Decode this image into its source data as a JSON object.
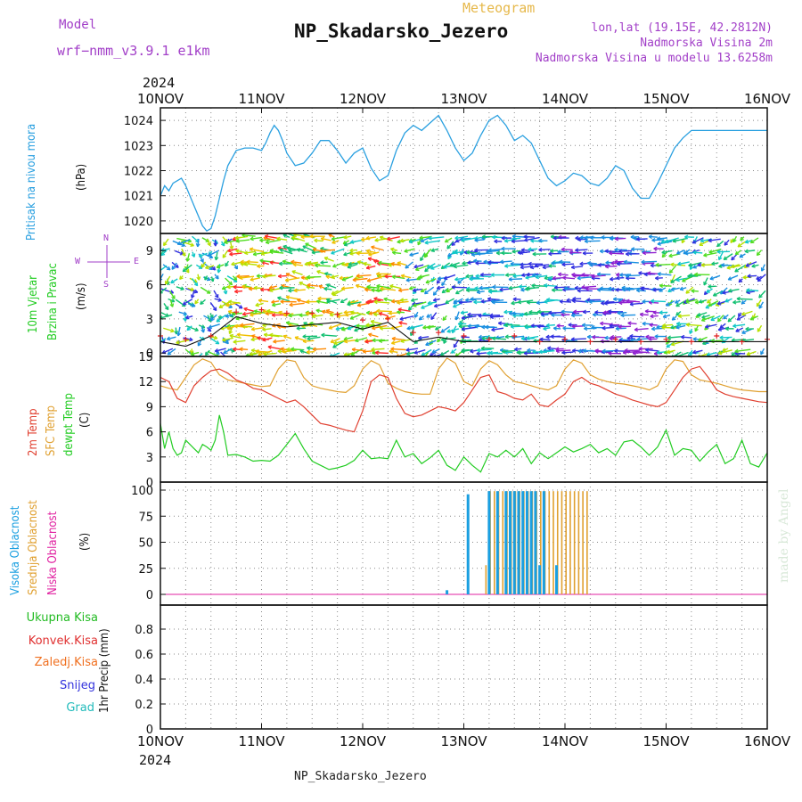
{
  "header": {
    "model_label": "Model",
    "model_name": "wrf−nmm_v3.9.1  e1km",
    "meteogram": "Meteogram",
    "station": "NP_Skadarsko_Jezero",
    "lonlat": "lon,lat (19.15E, 42.2812N)",
    "elevation": "Nadmorska Visina 2m",
    "model_elevation": "Nadmorska Visina u modelu 13.6258m",
    "year": "2024"
  },
  "footer": {
    "station": "NP_Skadarsko_Jezero",
    "watermark": "made by Angel"
  },
  "time_axis": {
    "labels": [
      "10NOV",
      "11NOV",
      "12NOV",
      "13NOV",
      "14NOV",
      "15NOV",
      "16NOV"
    ],
    "year": "2024"
  },
  "panels": {
    "pressure": {
      "title": "Pritisak na nivou mora",
      "unit": "(hPa)",
      "ticks": [
        "1020",
        "1021",
        "1022",
        "1023",
        "1024"
      ],
      "color": "#2aa0e0"
    },
    "wind": {
      "title1": "10m Vjetar",
      "title2": "Brzina i Pravac",
      "unit": "(m/s)",
      "ticks": [
        "0",
        "3",
        "6",
        "9"
      ],
      "compass": {
        "n": "N",
        "s": "S",
        "e": "E",
        "w": "W"
      },
      "speed_color": "#111111",
      "gust_color": "#e02020"
    },
    "temperature": {
      "t2m_label": "2m Temp",
      "sfc_label": "SFC Temp",
      "dew_label": "dewpt Temp",
      "unit": "(C)",
      "ticks": [
        "0",
        "3",
        "6",
        "9",
        "12",
        "15"
      ],
      "t2m_color": "#e04030",
      "sfc_color": "#e0a030",
      "dew_color": "#22cc22"
    },
    "cloud": {
      "high_label": "Visoka Oblacnost",
      "mid_label": "Srednja Oblacnost",
      "low_label": "Niska Oblacnost",
      "unit": "(%)",
      "ticks": [
        "0",
        "25",
        "50",
        "75",
        "100"
      ],
      "high_color": "#1a9fe0",
      "mid_color": "#e0a030",
      "low_color": "#e020a0"
    },
    "precip": {
      "unit": "1hr Precip (mm)",
      "ticks": [
        "0",
        "0.2",
        "0.4",
        "0.6",
        "0.8"
      ],
      "legend": [
        {
          "label": "Ukupna Kisa",
          "color": "#22bb22"
        },
        {
          "label": "Konvek.Kisa",
          "color": "#e03030"
        },
        {
          "label": "Zaledj.Kisa",
          "color": "#f07020"
        },
        {
          "label": "Snijeg",
          "color": "#3333dd"
        },
        {
          "label": "Grad",
          "color": "#22bbbb"
        }
      ]
    }
  },
  "chart_data": [
    {
      "type": "line",
      "title": "Pritisak na nivou mora",
      "ylabel": "(hPa)",
      "ylim": [
        1019.5,
        1024.5
      ],
      "x_unit": "hours from 10NOV 00Z",
      "series": [
        {
          "name": "Pritisak na nivou mora",
          "x": [
            0,
            1,
            2,
            3,
            4,
            5,
            6,
            8,
            10,
            11,
            12,
            13,
            14,
            15,
            16,
            18,
            20,
            22,
            24,
            25,
            26,
            27,
            28,
            29,
            30,
            32,
            34,
            36,
            38,
            40,
            42,
            44,
            46,
            48,
            50,
            52,
            54,
            56,
            58,
            60,
            62,
            64,
            66,
            68,
            70,
            72,
            74,
            76,
            78,
            80,
            82,
            84,
            86,
            88,
            90,
            92,
            94,
            96,
            98,
            100,
            102,
            104,
            106,
            108,
            110,
            112,
            114,
            116,
            118,
            120,
            122,
            124,
            126,
            128,
            130,
            132,
            134,
            136,
            138,
            140,
            142,
            144
          ],
          "values": [
            1021.0,
            1021.4,
            1021.2,
            1021.5,
            1021.6,
            1021.7,
            1021.4,
            1020.6,
            1019.8,
            1019.6,
            1019.7,
            1020.2,
            1020.9,
            1021.6,
            1022.2,
            1022.8,
            1022.9,
            1022.9,
            1022.8,
            1023.1,
            1023.5,
            1023.8,
            1023.6,
            1023.2,
            1022.7,
            1022.2,
            1022.3,
            1022.7,
            1023.2,
            1023.2,
            1022.8,
            1022.3,
            1022.7,
            1022.9,
            1022.1,
            1021.6,
            1021.8,
            1022.8,
            1023.5,
            1023.8,
            1023.6,
            1023.9,
            1024.2,
            1023.6,
            1022.9,
            1022.4,
            1022.7,
            1023.4,
            1024.0,
            1024.2,
            1023.8,
            1023.2,
            1023.4,
            1023.1,
            1022.4,
            1021.7,
            1021.4,
            1021.6,
            1021.9,
            1021.8,
            1021.5,
            1021.4,
            1021.7,
            1022.2,
            1022.0,
            1021.3,
            1020.9,
            1020.9,
            1021.5,
            1022.2,
            1022.9,
            1023.3,
            1023.6,
            1023.6,
            1023.6,
            1023.6,
            1023.6,
            1023.6,
            1023.6,
            1023.6,
            1023.6,
            1023.6
          ]
        }
      ]
    },
    {
      "type": "line",
      "title": "10m Vjetar Brzina i Pravac",
      "ylabel": "(m/s)",
      "ylim": [
        -0.3,
        10.5
      ],
      "x_unit": "hours from 10NOV 00Z",
      "series": [
        {
          "name": "",
          "x": [
            0,
            6,
            12,
            18,
            24,
            30,
            36,
            42,
            48,
            54,
            60,
            66,
            72,
            78,
            84,
            90,
            96,
            102,
            108,
            114,
            120,
            126,
            132,
            138,
            144
          ],
          "values": [
            1.0,
            0.6,
            1.5,
            3.2,
            2.6,
            2.3,
            2.5,
            2.7,
            2.1,
            2.7,
            1.0,
            1.4,
            1.0,
            1.0,
            1.0,
            1.0,
            1.0,
            1.0,
            1.0,
            1.0,
            1.0,
            1.0,
            1.0,
            1.0,
            1.0
          ]
        },
        {
          "name": "",
          "x": [
            0,
            6,
            12,
            18,
            24,
            30,
            36,
            42,
            48,
            54,
            60,
            66,
            72,
            78,
            84,
            90,
            96,
            102,
            108,
            114,
            120,
            126,
            132,
            138,
            144
          ],
          "values": [
            1.5,
            1.2,
            1.5,
            3.6,
            3.8,
            3.5,
            3.5,
            3.4,
            2.9,
            3.0,
            1.8,
            1.8,
            1.5,
            1.2,
            1.5,
            1.0,
            1.2,
            1.0,
            1.2,
            1.0,
            1.2,
            1.0,
            1.5,
            1.0,
            1.2
          ]
        }
      ]
    },
    {
      "type": "line",
      "title": "2m Temp / SFC Temp / dewpt Temp",
      "ylabel": "(C)",
      "ylim": [
        0,
        15
      ],
      "x_unit": "hours from 10NOV 00Z",
      "series": [
        {
          "name": "2m Temp",
          "x": [
            0,
            2,
            4,
            6,
            8,
            10,
            12,
            14,
            16,
            18,
            20,
            22,
            24,
            26,
            28,
            30,
            32,
            34,
            36,
            38,
            40,
            42,
            44,
            46,
            48,
            50,
            52,
            54,
            56,
            58,
            60,
            62,
            64,
            66,
            68,
            70,
            72,
            74,
            76,
            78,
            80,
            82,
            84,
            86,
            88,
            90,
            92,
            94,
            96,
            98,
            100,
            102,
            104,
            106,
            108,
            110,
            112,
            114,
            116,
            118,
            120,
            122,
            124,
            126,
            128,
            130,
            132,
            134,
            136,
            138,
            140,
            142,
            144
          ],
          "values": [
            12.5,
            12.0,
            10.0,
            9.5,
            11.5,
            12.5,
            13.3,
            13.5,
            13.0,
            12.2,
            11.8,
            11.2,
            11.0,
            10.5,
            10.0,
            9.5,
            9.8,
            9.0,
            8.0,
            7.0,
            6.8,
            6.5,
            6.2,
            6.0,
            8.5,
            12.0,
            12.8,
            12.5,
            10.0,
            8.2,
            7.8,
            8.0,
            8.5,
            9.0,
            8.8,
            8.5,
            9.5,
            11.0,
            12.5,
            12.8,
            10.8,
            10.5,
            10.0,
            9.8,
            10.5,
            9.2,
            9.0,
            9.8,
            10.5,
            12.0,
            12.5,
            11.8,
            11.5,
            11.0,
            10.5,
            10.2,
            9.8,
            9.5,
            9.2,
            9.0,
            9.5,
            11.0,
            12.5,
            13.5,
            13.8,
            12.5,
            11.0,
            10.5,
            10.2,
            10.0,
            9.8,
            9.6,
            9.5
          ]
        },
        {
          "name": "SFC Temp",
          "x": [
            0,
            2,
            4,
            6,
            8,
            10,
            12,
            14,
            16,
            18,
            20,
            22,
            24,
            26,
            28,
            30,
            32,
            34,
            36,
            38,
            40,
            42,
            44,
            46,
            48,
            50,
            52,
            54,
            56,
            58,
            60,
            62,
            64,
            66,
            68,
            70,
            72,
            74,
            76,
            78,
            80,
            82,
            84,
            86,
            88,
            90,
            92,
            94,
            96,
            98,
            100,
            102,
            104,
            106,
            108,
            110,
            112,
            114,
            116,
            118,
            120,
            122,
            124,
            126,
            128,
            130,
            132,
            134,
            136,
            138,
            140,
            142,
            144
          ],
          "values": [
            11.5,
            11.2,
            11.0,
            12.5,
            14.0,
            14.7,
            14.3,
            12.8,
            12.2,
            12.0,
            11.8,
            11.6,
            11.4,
            11.5,
            13.5,
            14.6,
            14.4,
            12.5,
            11.5,
            11.2,
            11.0,
            10.8,
            10.7,
            11.5,
            13.5,
            14.5,
            14.0,
            11.8,
            11.2,
            10.8,
            10.6,
            10.5,
            10.5,
            13.5,
            14.8,
            14.2,
            12.0,
            11.5,
            13.5,
            14.5,
            14.0,
            12.8,
            12.0,
            11.8,
            11.5,
            11.2,
            11.0,
            11.5,
            13.5,
            14.6,
            14.2,
            12.8,
            12.3,
            12.0,
            11.8,
            11.7,
            11.5,
            11.3,
            11.0,
            11.5,
            13.5,
            14.6,
            14.4,
            12.8,
            12.2,
            12.0,
            11.8,
            11.5,
            11.2,
            11.0,
            10.9,
            10.8,
            10.8
          ]
        },
        {
          "name": "dewpt Temp",
          "x": [
            0,
            1,
            2,
            3,
            4,
            5,
            6,
            7,
            8,
            9,
            10,
            11,
            12,
            13,
            14,
            15,
            16,
            18,
            20,
            22,
            24,
            26,
            28,
            30,
            32,
            34,
            36,
            38,
            40,
            42,
            44,
            46,
            48,
            50,
            52,
            54,
            56,
            58,
            60,
            62,
            64,
            66,
            68,
            70,
            72,
            74,
            76,
            78,
            80,
            82,
            84,
            86,
            88,
            90,
            92,
            94,
            96,
            98,
            100,
            102,
            104,
            106,
            108,
            110,
            112,
            114,
            116,
            118,
            120,
            122,
            124,
            126,
            128,
            130,
            132,
            134,
            136,
            138,
            140,
            142,
            144
          ],
          "values": [
            7.0,
            4.0,
            6.0,
            4.0,
            3.2,
            3.5,
            5.0,
            4.5,
            4.0,
            3.5,
            4.5,
            4.2,
            3.8,
            5.0,
            8.0,
            6.0,
            3.2,
            3.3,
            3.0,
            2.5,
            2.6,
            2.5,
            3.2,
            4.5,
            5.8,
            4.0,
            2.5,
            2.0,
            1.5,
            1.7,
            2.0,
            2.6,
            3.8,
            2.8,
            2.9,
            2.8,
            5.0,
            3.0,
            3.4,
            2.2,
            2.9,
            3.8,
            2.0,
            1.4,
            3.0,
            2.0,
            1.2,
            3.4,
            3.0,
            3.8,
            3.0,
            4.0,
            2.2,
            3.5,
            2.8,
            3.5,
            4.2,
            3.6,
            4.0,
            4.5,
            3.5,
            4.0,
            3.2,
            4.8,
            5.0,
            4.2,
            3.2,
            4.2,
            6.2,
            3.2,
            4.0,
            3.8,
            2.5,
            3.6,
            4.5,
            2.2,
            2.8,
            5.0,
            2.2,
            1.8,
            3.5
          ]
        }
      ]
    },
    {
      "type": "bar",
      "title": "Visoka / Srednja / Niska Oblacnost",
      "ylabel": "(%)",
      "ylim": [
        0,
        100
      ],
      "x_unit": "hours from 10NOV 00Z",
      "series": [
        {
          "name": "Visoka Oblacnost",
          "x": [
            68,
            73,
            78,
            80,
            82,
            83,
            84,
            85,
            86,
            87,
            88,
            89,
            90,
            91,
            94
          ],
          "values": [
            4,
            96,
            99,
            99,
            99,
            99,
            99,
            99,
            99,
            99,
            99,
            99,
            28,
            99,
            28
          ]
        },
        {
          "name": "Srednja Oblacnost",
          "x": [
            77,
            78,
            79,
            80,
            81,
            82,
            83,
            84,
            85,
            86,
            87,
            88,
            89,
            90,
            91,
            92,
            93,
            94,
            95,
            96,
            97,
            98,
            99,
            100,
            101
          ],
          "values": [
            28,
            99,
            99,
            99,
            99,
            99,
            99,
            99,
            99,
            99,
            99,
            99,
            99,
            99,
            99,
            99,
            99,
            99,
            99,
            99,
            99,
            99,
            99,
            99,
            99
          ]
        },
        {
          "name": "Niska Oblacnost",
          "x": [],
          "values": []
        }
      ]
    },
    {
      "type": "bar",
      "title": "1hr Precip",
      "ylabel": "1hr Precip (mm)",
      "ylim": [
        0,
        0.95
      ],
      "series": [
        {
          "name": "Ukupna Kisa",
          "values": []
        },
        {
          "name": "Konvek.Kisa",
          "values": []
        },
        {
          "name": "Zaledj.Kisa",
          "values": []
        },
        {
          "name": "Snijeg",
          "values": []
        },
        {
          "name": "Grad",
          "values": []
        }
      ]
    }
  ]
}
